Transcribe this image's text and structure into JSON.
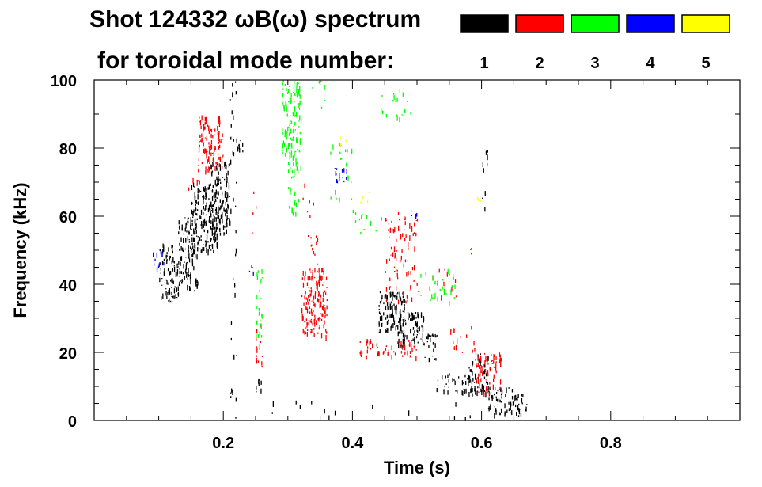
{
  "chart_data": {
    "type": "heatmap",
    "title_line1": "Shot 124332 ωB(ω) spectrum",
    "title_line2": "for toroidal mode number:",
    "xlabel": "Time (s)",
    "ylabel": "Frequency (kHz)",
    "xlim": [
      0.0,
      1.0
    ],
    "ylim": [
      0,
      100
    ],
    "x_ticks": [
      0.2,
      0.4,
      0.6,
      0.8
    ],
    "x_tick_labels": [
      "0.2",
      "0.4",
      "0.6",
      "0.8"
    ],
    "y_ticks": [
      0,
      20,
      40,
      60,
      80,
      100
    ],
    "y_tick_labels": [
      "0",
      "20",
      "40",
      "60",
      "80",
      "100"
    ],
    "legend": [
      {
        "label": "1",
        "color": "#000000"
      },
      {
        "label": "2",
        "color": "#ff0000"
      },
      {
        "label": "3",
        "color": "#00ff00"
      },
      {
        "label": "4",
        "color": "#0000ff"
      },
      {
        "label": "5",
        "color": "#ffff00"
      }
    ],
    "series": [
      {
        "mode": 1,
        "color": "#000000",
        "regions": [
          {
            "t": [
              0.1,
              0.13
            ],
            "f": [
              35,
              52
            ],
            "density": 0.3
          },
          {
            "t": [
              0.13,
              0.16
            ],
            "f": [
              38,
              60
            ],
            "density": 0.3
          },
          {
            "t": [
              0.15,
              0.19
            ],
            "f": [
              50,
              70
            ],
            "density": 0.35
          },
          {
            "t": [
              0.18,
              0.21
            ],
            "f": [
              55,
              76
            ],
            "density": 0.35
          },
          {
            "t": [
              0.21,
              0.22
            ],
            "f": [
              0,
              100
            ],
            "density": 0.06
          },
          {
            "t": [
              0.22,
              0.23
            ],
            "f": [
              78,
              83
            ],
            "density": 0.25
          },
          {
            "t": [
              0.25,
              0.26
            ],
            "f": [
              8,
              13
            ],
            "density": 0.25
          },
          {
            "t": [
              0.44,
              0.48
            ],
            "f": [
              26,
              38
            ],
            "density": 0.4
          },
          {
            "t": [
              0.47,
              0.51
            ],
            "f": [
              22,
              32
            ],
            "density": 0.35
          },
          {
            "t": [
              0.51,
              0.53
            ],
            "f": [
              18,
              26
            ],
            "density": 0.25
          },
          {
            "t": [
              0.53,
              0.58
            ],
            "f": [
              8,
              14
            ],
            "density": 0.2
          },
          {
            "t": [
              0.58,
              0.61
            ],
            "f": [
              8,
              20
            ],
            "density": 0.3
          },
          {
            "t": [
              0.61,
              0.65
            ],
            "f": [
              2,
              10
            ],
            "density": 0.3
          },
          {
            "t": [
              0.65,
              0.67
            ],
            "f": [
              1,
              8
            ],
            "density": 0.3
          },
          {
            "t": [
              0.27,
              0.65
            ],
            "f": [
              1,
              6
            ],
            "density": 0.015
          },
          {
            "t": [
              0.6,
              0.61
            ],
            "f": [
              60,
              80
            ],
            "density": 0.08
          }
        ]
      },
      {
        "mode": 2,
        "color": "#ff0000",
        "regions": [
          {
            "t": [
              0.16,
              0.2
            ],
            "f": [
              73,
              90
            ],
            "density": 0.3
          },
          {
            "t": [
              0.14,
              0.17
            ],
            "f": [
              68,
              72
            ],
            "density": 0.1
          },
          {
            "t": [
              0.25,
              0.26
            ],
            "f": [
              16,
              28
            ],
            "density": 0.2
          },
          {
            "t": [
              0.24,
              0.25
            ],
            "f": [
              55,
              70
            ],
            "density": 0.05
          },
          {
            "t": [
              0.32,
              0.36
            ],
            "f": [
              25,
              45
            ],
            "density": 0.35
          },
          {
            "t": [
              0.33,
              0.35
            ],
            "f": [
              45,
              55
            ],
            "density": 0.1
          },
          {
            "t": [
              0.32,
              0.34
            ],
            "f": [
              60,
              70
            ],
            "density": 0.05
          },
          {
            "t": [
              0.41,
              0.5
            ],
            "f": [
              19,
              24
            ],
            "density": 0.2
          },
          {
            "t": [
              0.45,
              0.5
            ],
            "f": [
              35,
              62
            ],
            "density": 0.12
          },
          {
            "t": [
              0.52,
              0.56
            ],
            "f": [
              35,
              45
            ],
            "density": 0.06
          },
          {
            "t": [
              0.55,
              0.59
            ],
            "f": [
              20,
              28
            ],
            "density": 0.08
          },
          {
            "t": [
              0.59,
              0.63
            ],
            "f": [
              8,
              20
            ],
            "density": 0.25
          }
        ]
      },
      {
        "mode": 3,
        "color": "#00ff00",
        "regions": [
          {
            "t": [
              0.29,
              0.32
            ],
            "f": [
              78,
              100
            ],
            "density": 0.3
          },
          {
            "t": [
              0.3,
              0.32
            ],
            "f": [
              60,
              78
            ],
            "density": 0.15
          },
          {
            "t": [
              0.25,
              0.26
            ],
            "f": [
              25,
              45
            ],
            "density": 0.2
          },
          {
            "t": [
              0.36,
              0.4
            ],
            "f": [
              65,
              82
            ],
            "density": 0.06
          },
          {
            "t": [
              0.4,
              0.45
            ],
            "f": [
              55,
              62
            ],
            "density": 0.06
          },
          {
            "t": [
              0.5,
              0.56
            ],
            "f": [
              35,
              45
            ],
            "density": 0.08
          },
          {
            "t": [
              0.44,
              0.49
            ],
            "f": [
              88,
              98
            ],
            "density": 0.06
          },
          {
            "t": [
              0.33,
              0.36
            ],
            "f": [
              92,
              100
            ],
            "density": 0.04
          }
        ]
      },
      {
        "mode": 4,
        "color": "#0000ff",
        "regions": [
          {
            "t": [
              0.09,
              0.11
            ],
            "f": [
              45,
              50
            ],
            "density": 0.2
          },
          {
            "t": [
              0.37,
              0.4
            ],
            "f": [
              70,
              76
            ],
            "density": 0.1
          },
          {
            "t": [
              0.24,
              0.25
            ],
            "f": [
              42,
              47
            ],
            "density": 0.15
          },
          {
            "t": [
              0.49,
              0.51
            ],
            "f": [
              58,
              62
            ],
            "density": 0.08
          },
          {
            "t": [
              0.58,
              0.59
            ],
            "f": [
              48,
              52
            ],
            "density": 0.08
          }
        ]
      },
      {
        "mode": 5,
        "color": "#ffff00",
        "regions": [
          {
            "t": [
              0.38,
              0.39
            ],
            "f": [
              80,
              84
            ],
            "density": 0.15
          },
          {
            "t": [
              0.41,
              0.43
            ],
            "f": [
              64,
              68
            ],
            "density": 0.1
          },
          {
            "t": [
              0.59,
              0.6
            ],
            "f": [
              62,
              66
            ],
            "density": 0.08
          }
        ]
      }
    ]
  }
}
